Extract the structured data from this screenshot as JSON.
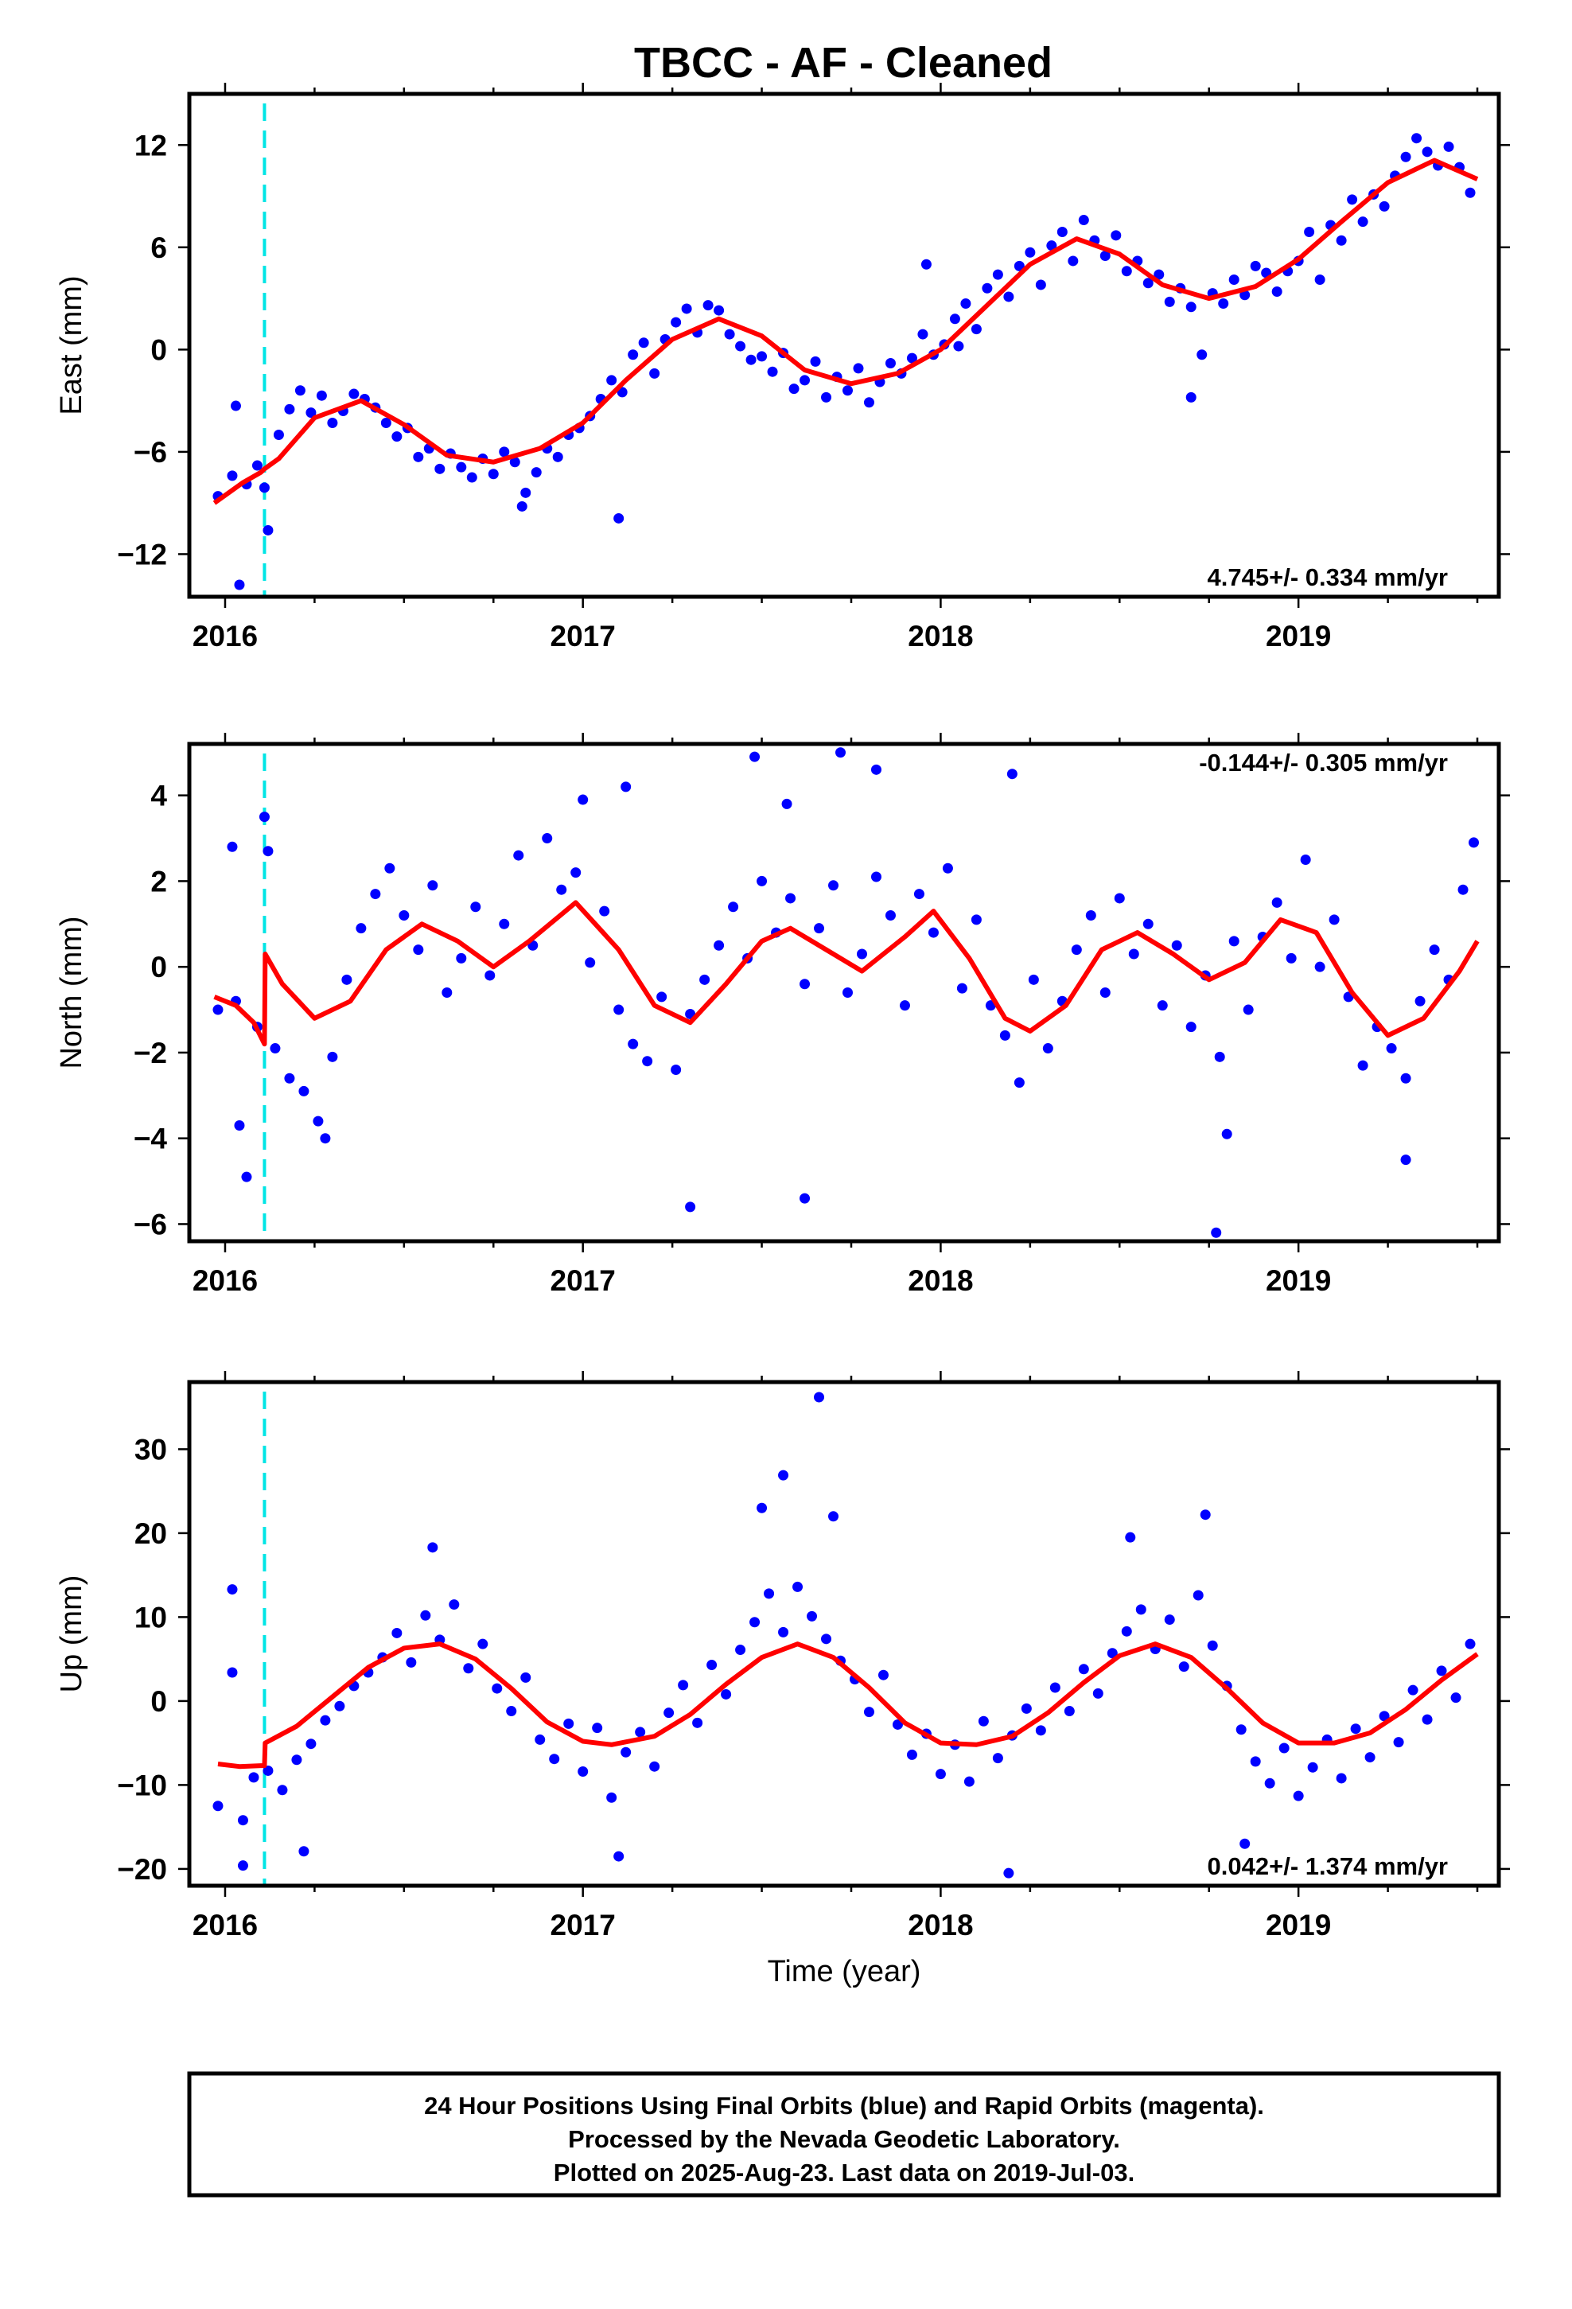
{
  "figure": {
    "title": "TBCC  - AF - Cleaned",
    "xlabel": "Time (year)",
    "footer": [
      "24 Hour Positions Using Final Orbits (blue) and Rapid Orbits (magenta).",
      "Processed by the Nevada Geodetic Laboratory.",
      "Plotted on 2025-Aug-23. Last data on 2019-Jul-03."
    ]
  },
  "colors": {
    "points": "#0000ff",
    "model": "#ff0000",
    "event_line": "#00e5e5",
    "frame": "#000000"
  },
  "chart_data": [
    {
      "type": "scatter",
      "ylabel": "East (mm)",
      "xlim": [
        2015.9,
        2019.56
      ],
      "ylim": [
        -14.5,
        15.0
      ],
      "xticks": [
        2016,
        2017,
        2018,
        2019
      ],
      "yticks": [
        -12,
        -6,
        0,
        6,
        12
      ],
      "rate_label": "4.745+/- 0.334 mm/yr",
      "rate_position": "bottom-right",
      "event_x": 2016.11,
      "grid": false,
      "model": {
        "x": [
          2015.97,
          2016.05,
          2016.1,
          2016.11,
          2016.15,
          2016.25,
          2016.38,
          2016.5,
          2016.62,
          2016.75,
          2016.88,
          2017.0,
          2017.12,
          2017.25,
          2017.38,
          2017.5,
          2017.62,
          2017.75,
          2017.88,
          2018.0,
          2018.12,
          2018.25,
          2018.38,
          2018.5,
          2018.62,
          2018.75,
          2018.88,
          2019.0,
          2019.12,
          2019.25,
          2019.38,
          2019.5
        ],
        "y": [
          -9.0,
          -7.8,
          -7.2,
          -7.0,
          -6.4,
          -4.0,
          -3.0,
          -4.4,
          -6.2,
          -6.6,
          -5.8,
          -4.3,
          -1.8,
          0.6,
          1.8,
          0.8,
          -1.2,
          -2.0,
          -1.4,
          0.0,
          2.4,
          5.0,
          6.5,
          5.6,
          3.8,
          3.0,
          3.7,
          5.3,
          7.5,
          9.8,
          11.1,
          10.0
        ]
      },
      "series": [
        {
          "x": [
            2015.98,
            2016.02,
            2016.04,
            2016.06,
            2016.09,
            2016.12,
            2016.15,
            2016.18,
            2016.21,
            2016.24,
            2016.27,
            2016.3,
            2016.33,
            2016.36,
            2016.39,
            2016.42,
            2016.45,
            2016.48,
            2016.51,
            2016.54,
            2016.57,
            2016.6,
            2016.63,
            2016.66,
            2016.69,
            2016.72,
            2016.75,
            2016.78,
            2016.81,
            2016.84,
            2016.87,
            2016.9,
            2016.93,
            2016.96,
            2016.99,
            2017.02,
            2017.05,
            2017.08,
            2017.11,
            2017.14,
            2017.17,
            2017.2,
            2017.23,
            2017.26,
            2017.29,
            2017.32,
            2017.35,
            2017.38,
            2017.41,
            2017.44,
            2017.47,
            2017.5,
            2017.53,
            2017.56,
            2017.59,
            2017.62,
            2017.65,
            2017.68,
            2017.71,
            2017.74,
            2017.77,
            2017.8,
            2017.83,
            2017.86,
            2017.89,
            2017.92,
            2017.95,
            2017.98,
            2018.01,
            2018.04,
            2018.07,
            2018.1,
            2018.13,
            2018.16,
            2018.19,
            2018.22,
            2018.25,
            2018.28,
            2018.31,
            2018.34,
            2018.37,
            2018.4,
            2018.43,
            2018.46,
            2018.49,
            2018.52,
            2018.55,
            2018.58,
            2018.61,
            2018.64,
            2018.67,
            2018.7,
            2018.73,
            2018.76,
            2018.79,
            2018.82,
            2018.85,
            2018.88,
            2018.91,
            2018.94,
            2018.97,
            2019.0,
            2019.03,
            2019.06,
            2019.09,
            2019.12,
            2019.15,
            2019.18,
            2019.21,
            2019.24,
            2019.27,
            2019.3,
            2019.33,
            2019.36,
            2019.39,
            2019.42,
            2019.45,
            2019.48,
            2016.03,
            2016.11,
            2016.83,
            2017.1,
            2017.96,
            2018.7,
            2018.05
          ],
          "y": [
            -8.6,
            -7.4,
            -13.8,
            -7.9,
            -6.8,
            -10.6,
            -5.0,
            -3.5,
            -2.4,
            -3.7,
            -2.7,
            -4.3,
            -3.6,
            -2.6,
            -2.9,
            -3.4,
            -4.3,
            -5.1,
            -4.6,
            -6.3,
            -5.8,
            -7.0,
            -6.1,
            -6.9,
            -7.5,
            -6.4,
            -7.3,
            -6.0,
            -6.6,
            -8.4,
            -7.2,
            -5.8,
            -6.3,
            -5.0,
            -4.6,
            -3.9,
            -2.9,
            -1.8,
            -2.5,
            -0.3,
            0.4,
            -1.4,
            0.6,
            1.6,
            2.4,
            1.0,
            2.6,
            2.3,
            0.9,
            0.2,
            -0.6,
            -0.4,
            -1.3,
            -0.2,
            -2.3,
            -1.8,
            -0.7,
            -2.8,
            -1.6,
            -2.4,
            -1.1,
            -3.1,
            -1.9,
            -0.8,
            -1.4,
            -0.5,
            0.9,
            -0.3,
            0.3,
            1.8,
            2.7,
            1.2,
            3.6,
            4.4,
            3.1,
            4.9,
            5.7,
            3.8,
            6.1,
            6.9,
            5.2,
            7.6,
            6.4,
            5.5,
            6.7,
            4.6,
            5.2,
            3.9,
            4.4,
            2.8,
            3.6,
            2.5,
            -0.3,
            3.3,
            2.7,
            4.1,
            3.2,
            4.9,
            4.5,
            3.4,
            4.6,
            5.2,
            6.9,
            4.1,
            7.3,
            6.4,
            8.8,
            7.5,
            9.1,
            8.4,
            10.2,
            11.3,
            12.4,
            11.6,
            10.8,
            11.9,
            10.7,
            9.2,
            -3.3,
            -8.1,
            -9.2,
            -9.9,
            5.0,
            -2.8,
            0.2
          ]
        }
      ]
    },
    {
      "type": "scatter",
      "ylabel": "North (mm)",
      "xlim": [
        2015.9,
        2019.56
      ],
      "ylim": [
        -6.4,
        5.2
      ],
      "xticks": [
        2016,
        2017,
        2018,
        2019
      ],
      "yticks": [
        -6,
        -4,
        -2,
        0,
        2,
        4
      ],
      "rate_label": "-0.144+/- 0.305 mm/yr",
      "rate_position": "top-right",
      "event_x": 2016.11,
      "grid": false,
      "model": {
        "x": [
          2015.97,
          2016.03,
          2016.08,
          2016.11,
          2016.112,
          2016.16,
          2016.25,
          2016.35,
          2016.45,
          2016.55,
          2016.65,
          2016.75,
          2016.85,
          2016.98,
          2017.1,
          2017.2,
          2017.3,
          2017.4,
          2017.5,
          2017.58,
          2017.68,
          2017.78,
          2017.9,
          2017.98,
          2018.08,
          2018.18,
          2018.25,
          2018.35,
          2018.45,
          2018.55,
          2018.65,
          2018.75,
          2018.85,
          2018.95,
          2019.05,
          2019.15,
          2019.25,
          2019.35,
          2019.45,
          2019.5
        ],
        "y": [
          -0.7,
          -0.9,
          -1.3,
          -1.8,
          0.3,
          -0.4,
          -1.2,
          -0.8,
          0.4,
          1.0,
          0.6,
          0.0,
          0.6,
          1.5,
          0.4,
          -0.9,
          -1.3,
          -0.4,
          0.6,
          0.9,
          0.4,
          -0.1,
          0.7,
          1.3,
          0.2,
          -1.2,
          -1.5,
          -0.9,
          0.4,
          0.8,
          0.3,
          -0.3,
          0.1,
          1.1,
          0.8,
          -0.6,
          -1.6,
          -1.2,
          -0.1,
          0.6
        ]
      },
      "series": [
        {
          "x": [
            2015.98,
            2016.02,
            2016.04,
            2016.06,
            2016.09,
            2016.11,
            2016.14,
            2016.18,
            2016.22,
            2016.26,
            2016.3,
            2016.34,
            2016.38,
            2016.42,
            2016.46,
            2016.5,
            2016.54,
            2016.58,
            2016.62,
            2016.66,
            2016.7,
            2016.74,
            2016.78,
            2016.82,
            2016.86,
            2016.9,
            2016.94,
            2016.98,
            2017.02,
            2017.06,
            2017.1,
            2017.14,
            2017.18,
            2017.22,
            2017.26,
            2017.3,
            2017.34,
            2017.38,
            2017.42,
            2017.46,
            2017.5,
            2017.54,
            2017.58,
            2017.62,
            2017.66,
            2017.7,
            2017.74,
            2017.78,
            2017.82,
            2017.86,
            2017.9,
            2017.94,
            2017.98,
            2018.02,
            2018.06,
            2018.1,
            2018.14,
            2018.18,
            2018.22,
            2018.26,
            2018.3,
            2018.34,
            2018.38,
            2018.42,
            2018.46,
            2018.5,
            2018.54,
            2018.58,
            2018.62,
            2018.66,
            2018.7,
            2018.74,
            2018.78,
            2018.82,
            2018.86,
            2018.9,
            2018.94,
            2018.98,
            2019.02,
            2019.06,
            2019.1,
            2019.14,
            2019.18,
            2019.22,
            2019.26,
            2019.3,
            2019.34,
            2019.38,
            2019.42,
            2019.46,
            2019.49,
            2016.03,
            2016.12,
            2016.28,
            2017.0,
            2017.12,
            2017.3,
            2017.48,
            2017.57,
            2017.62,
            2017.72,
            2017.82,
            2018.2,
            2018.77,
            2018.8,
            2019.3
          ],
          "y": [
            -1.0,
            2.8,
            -3.7,
            -4.9,
            -1.4,
            3.5,
            -1.9,
            -2.6,
            -2.9,
            -3.6,
            -2.1,
            -0.3,
            0.9,
            1.7,
            2.3,
            1.2,
            0.4,
            1.9,
            -0.6,
            0.2,
            1.4,
            -0.2,
            1.0,
            2.6,
            0.5,
            3.0,
            1.8,
            2.2,
            0.1,
            1.3,
            -1.0,
            -1.8,
            -2.2,
            -0.7,
            -2.4,
            -1.1,
            -0.3,
            0.5,
            1.4,
            0.2,
            2.0,
            0.8,
            1.6,
            -0.4,
            0.9,
            1.9,
            -0.6,
            0.3,
            2.1,
            1.2,
            -0.9,
            1.7,
            0.8,
            2.3,
            -0.5,
            1.1,
            -0.9,
            -1.6,
            -2.7,
            -0.3,
            -1.9,
            -0.8,
            0.4,
            1.2,
            -0.6,
            1.6,
            0.3,
            1.0,
            -0.9,
            0.5,
            -1.4,
            -0.2,
            -2.1,
            0.6,
            -1.0,
            0.7,
            1.5,
            0.2,
            2.5,
            0.0,
            1.1,
            -0.7,
            -2.3,
            -1.4,
            -1.9,
            -2.6,
            -0.8,
            0.4,
            -0.3,
            1.8,
            2.9,
            -0.8,
            2.7,
            -4.0,
            3.9,
            4.2,
            -5.6,
            4.9,
            3.8,
            -5.4,
            5.0,
            4.6,
            4.5,
            -6.2,
            -3.9,
            -4.5
          ]
        }
      ]
    },
    {
      "type": "scatter",
      "ylabel": "Up (mm)",
      "xlim": [
        2015.9,
        2019.56
      ],
      "ylim": [
        -22.0,
        38.0
      ],
      "xticks": [
        2016,
        2017,
        2018,
        2019
      ],
      "yticks": [
        -20,
        -10,
        0,
        10,
        20,
        30
      ],
      "rate_label": "0.042+/- 1.374 mm/yr",
      "rate_position": "bottom-right",
      "event_x": 2016.11,
      "grid": false,
      "model": {
        "x": [
          2015.98,
          2016.04,
          2016.1,
          2016.11,
          2016.112,
          2016.2,
          2016.3,
          2016.4,
          2016.5,
          2016.6,
          2016.7,
          2016.8,
          2016.9,
          2017.0,
          2017.08,
          2017.2,
          2017.3,
          2017.4,
          2017.5,
          2017.6,
          2017.7,
          2017.8,
          2017.9,
          2018.0,
          2018.1,
          2018.2,
          2018.3,
          2018.4,
          2018.5,
          2018.6,
          2018.7,
          2018.8,
          2018.9,
          2019.0,
          2019.1,
          2019.2,
          2019.3,
          2019.4,
          2019.5
        ],
        "y": [
          -7.5,
          -7.8,
          -7.7,
          -7.7,
          -5.0,
          -3.0,
          0.5,
          4.0,
          6.3,
          6.8,
          5.0,
          1.5,
          -2.5,
          -4.8,
          -5.2,
          -4.2,
          -1.6,
          2.0,
          5.2,
          6.8,
          5.2,
          1.6,
          -2.6,
          -5.0,
          -5.2,
          -4.2,
          -1.4,
          2.2,
          5.4,
          6.8,
          5.2,
          1.5,
          -2.6,
          -5.0,
          -5.0,
          -3.8,
          -1.0,
          2.5,
          5.6
        ]
      },
      "series": [
        {
          "x": [
            2015.98,
            2016.02,
            2016.05,
            2016.08,
            2016.12,
            2016.16,
            2016.2,
            2016.24,
            2016.28,
            2016.32,
            2016.36,
            2016.4,
            2016.44,
            2016.48,
            2016.52,
            2016.56,
            2016.6,
            2016.64,
            2016.68,
            2016.72,
            2016.76,
            2016.8,
            2016.84,
            2016.88,
            2016.92,
            2016.96,
            2017.0,
            2017.04,
            2017.08,
            2017.12,
            2017.16,
            2017.2,
            2017.24,
            2017.28,
            2017.32,
            2017.36,
            2017.4,
            2017.44,
            2017.48,
            2017.52,
            2017.56,
            2017.6,
            2017.64,
            2017.68,
            2017.72,
            2017.76,
            2017.8,
            2017.84,
            2017.88,
            2017.92,
            2017.96,
            2018.0,
            2018.04,
            2018.08,
            2018.12,
            2018.16,
            2018.2,
            2018.24,
            2018.28,
            2018.32,
            2018.36,
            2018.4,
            2018.44,
            2018.48,
            2018.52,
            2018.56,
            2018.6,
            2018.64,
            2018.68,
            2018.72,
            2018.76,
            2018.8,
            2018.84,
            2018.88,
            2018.92,
            2018.96,
            2019.0,
            2019.04,
            2019.08,
            2019.12,
            2019.16,
            2019.2,
            2019.24,
            2019.28,
            2019.32,
            2019.36,
            2019.4,
            2019.44,
            2019.48,
            2016.02,
            2016.05,
            2016.22,
            2016.58,
            2017.1,
            2017.5,
            2017.56,
            2017.66,
            2017.7,
            2018.19,
            2018.53,
            2018.74,
            2018.85
          ],
          "y": [
            -12.5,
            3.4,
            -14.2,
            -9.1,
            -8.3,
            -10.6,
            -7.0,
            -5.1,
            -2.3,
            -0.6,
            1.8,
            3.4,
            5.2,
            8.1,
            4.6,
            10.2,
            7.3,
            11.5,
            3.9,
            6.8,
            1.5,
            -1.2,
            2.8,
            -4.6,
            -6.9,
            -2.7,
            -8.4,
            -3.2,
            -11.5,
            -6.1,
            -3.7,
            -7.8,
            -1.4,
            1.9,
            -2.6,
            4.3,
            0.8,
            6.1,
            9.4,
            12.8,
            8.2,
            13.6,
            10.1,
            7.4,
            4.8,
            2.6,
            -1.3,
            3.1,
            -2.8,
            -6.4,
            -3.9,
            -8.7,
            -5.2,
            -9.6,
            -2.4,
            -6.8,
            -4.1,
            -0.9,
            -3.5,
            1.6,
            -1.2,
            3.8,
            0.9,
            5.7,
            8.3,
            10.9,
            6.2,
            9.7,
            4.1,
            12.6,
            6.6,
            1.8,
            -3.4,
            -7.2,
            -9.8,
            -5.6,
            -11.3,
            -7.9,
            -4.6,
            -9.2,
            -3.3,
            -6.7,
            -1.8,
            -4.9,
            1.3,
            -2.2,
            3.6,
            0.4,
            6.8,
            13.3,
            -19.6,
            -17.9,
            18.3,
            -18.5,
            23.0,
            26.9,
            36.2,
            22.0,
            -20.5,
            19.5,
            22.2,
            -17.0
          ]
        }
      ]
    }
  ]
}
